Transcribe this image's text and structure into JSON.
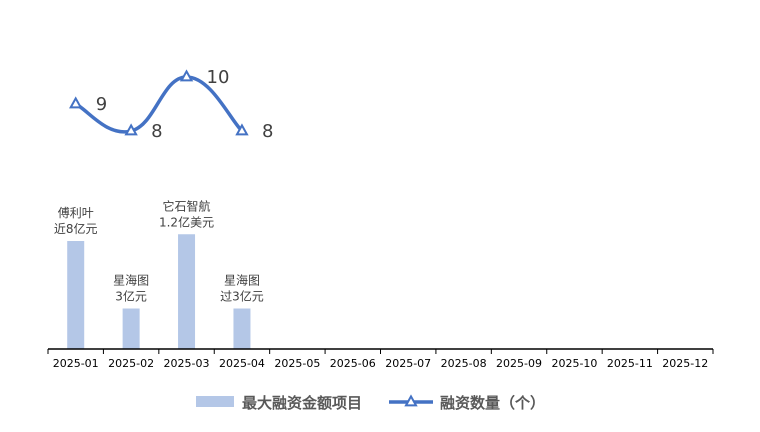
{
  "chart_data": {
    "type": "bar",
    "categories": [
      "2025-01",
      "2025-02",
      "2025-03",
      "2025-04",
      "2025-05",
      "2025-06",
      "2025-07",
      "2025-08",
      "2025-09",
      "2025-10",
      "2025-11",
      "2025-12"
    ],
    "series": [
      {
        "name": "最大融资金额项目",
        "type": "bar",
        "values": [
          8,
          3,
          8.5,
          3,
          null,
          null,
          null,
          null,
          null,
          null,
          null,
          null
        ],
        "labels": [
          [
            "傅利叶",
            "近8亿元"
          ],
          [
            "星海图",
            "3亿元"
          ],
          [
            "它石智航",
            "1.2亿美元"
          ],
          [
            "星海图",
            "过3亿元"
          ],
          null,
          null,
          null,
          null,
          null,
          null,
          null,
          null
        ],
        "color": "#b4c7e7"
      },
      {
        "name": "融资数量（个）",
        "type": "line",
        "values": [
          9,
          8,
          10,
          8,
          null,
          null,
          null,
          null,
          null,
          null,
          null,
          null
        ],
        "color": "#4472c4",
        "marker": "triangle"
      }
    ],
    "legend": {
      "position": "bottom"
    },
    "grid": false,
    "colors": {
      "axis": "#000000",
      "tick_text": "#000000",
      "label_text": "#404040",
      "legend_text": "#595959"
    }
  }
}
